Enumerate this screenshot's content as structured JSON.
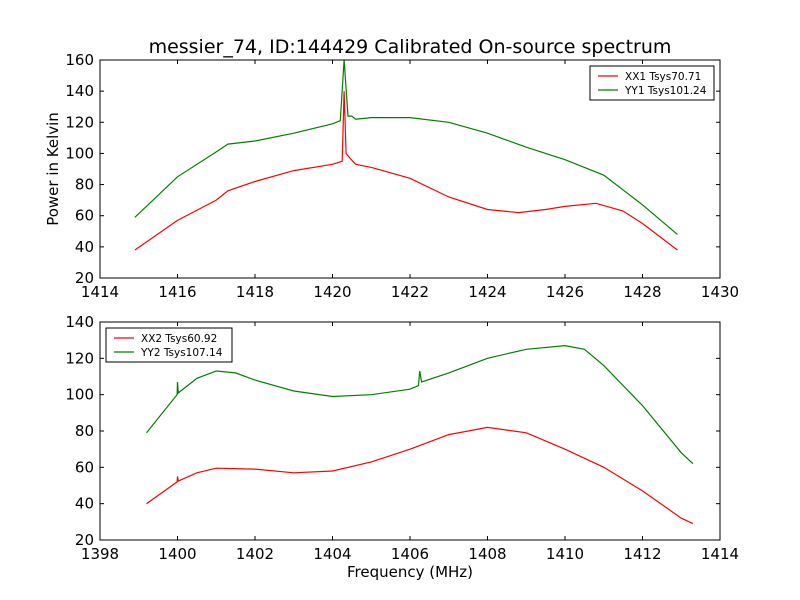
{
  "chart_data": [
    {
      "type": "line",
      "title": "messier_74, ID:144429 Calibrated On-source spectrum",
      "xlabel": "",
      "ylabel": "Power in Kelvin",
      "xlim": [
        1414,
        1430
      ],
      "ylim": [
        20,
        160
      ],
      "xticks": [
        1414,
        1416,
        1418,
        1420,
        1422,
        1424,
        1426,
        1428,
        1430
      ],
      "yticks": [
        20,
        40,
        60,
        80,
        100,
        120,
        140,
        160
      ],
      "legend": "top-right",
      "series": [
        {
          "name": "XX1 Tsys70.71",
          "color": "#ff0000",
          "x": [
            1414.9,
            1416,
            1417,
            1417.3,
            1418,
            1419,
            1420,
            1420.25,
            1420.3,
            1420.35,
            1420.45,
            1420.6,
            1421,
            1422,
            1423,
            1424,
            1424.8,
            1425.5,
            1426,
            1426.8,
            1427.5,
            1428,
            1428.9
          ],
          "y": [
            38,
            57,
            70,
            76,
            82,
            89,
            93,
            95,
            140,
            100,
            97,
            93,
            91,
            84,
            72,
            64,
            62,
            64,
            66,
            68,
            63,
            55,
            38
          ]
        },
        {
          "name": "YY1 Tsys101.24",
          "color": "#008000",
          "x": [
            1414.9,
            1416,
            1417,
            1417.3,
            1418,
            1419,
            1420,
            1420.2,
            1420.3,
            1420.4,
            1420.5,
            1420.6,
            1421,
            1422,
            1423,
            1424,
            1425,
            1426,
            1427,
            1428,
            1428.9
          ],
          "y": [
            59,
            85,
            101,
            106,
            108,
            113,
            119,
            121,
            160,
            124,
            124,
            122,
            123,
            123,
            120,
            113,
            104,
            96,
            86,
            67,
            48
          ]
        }
      ]
    },
    {
      "type": "line",
      "title": "",
      "xlabel": "Frequency (MHz)",
      "ylabel": "",
      "xlim": [
        1398,
        1414
      ],
      "ylim": [
        20,
        140
      ],
      "xticks": [
        1398,
        1400,
        1402,
        1404,
        1406,
        1408,
        1410,
        1412,
        1414
      ],
      "yticks": [
        20,
        40,
        60,
        80,
        100,
        120,
        140
      ],
      "legend": "top-left",
      "series": [
        {
          "name": "XX2 Tsys60.92",
          "color": "#ff0000",
          "x": [
            1399.2,
            1399.99,
            1400,
            1400.02,
            1400.5,
            1401,
            1402,
            1403,
            1404,
            1405,
            1406,
            1407,
            1408,
            1409,
            1410,
            1411,
            1412,
            1413,
            1413.3
          ],
          "y": [
            40,
            52,
            55,
            52.5,
            57,
            59.5,
            59,
            57,
            58,
            63,
            70,
            78,
            82,
            79,
            70,
            60,
            47,
            32,
            29
          ]
        },
        {
          "name": "YY2 Tsys107.14",
          "color": "#008000",
          "x": [
            1399.2,
            1399.99,
            1400,
            1400.02,
            1400.5,
            1401,
            1401.5,
            1402,
            1403,
            1404,
            1405,
            1406,
            1406.22,
            1406.25,
            1406.3,
            1407,
            1408,
            1409,
            1410,
            1410.5,
            1411,
            1412,
            1413,
            1413.3
          ],
          "y": [
            79,
            100,
            107,
            101,
            109,
            113,
            112,
            108,
            102,
            99,
            100,
            103,
            105,
            113,
            107,
            112,
            120,
            125,
            127,
            125,
            116,
            94,
            68,
            62
          ]
        }
      ]
    }
  ]
}
